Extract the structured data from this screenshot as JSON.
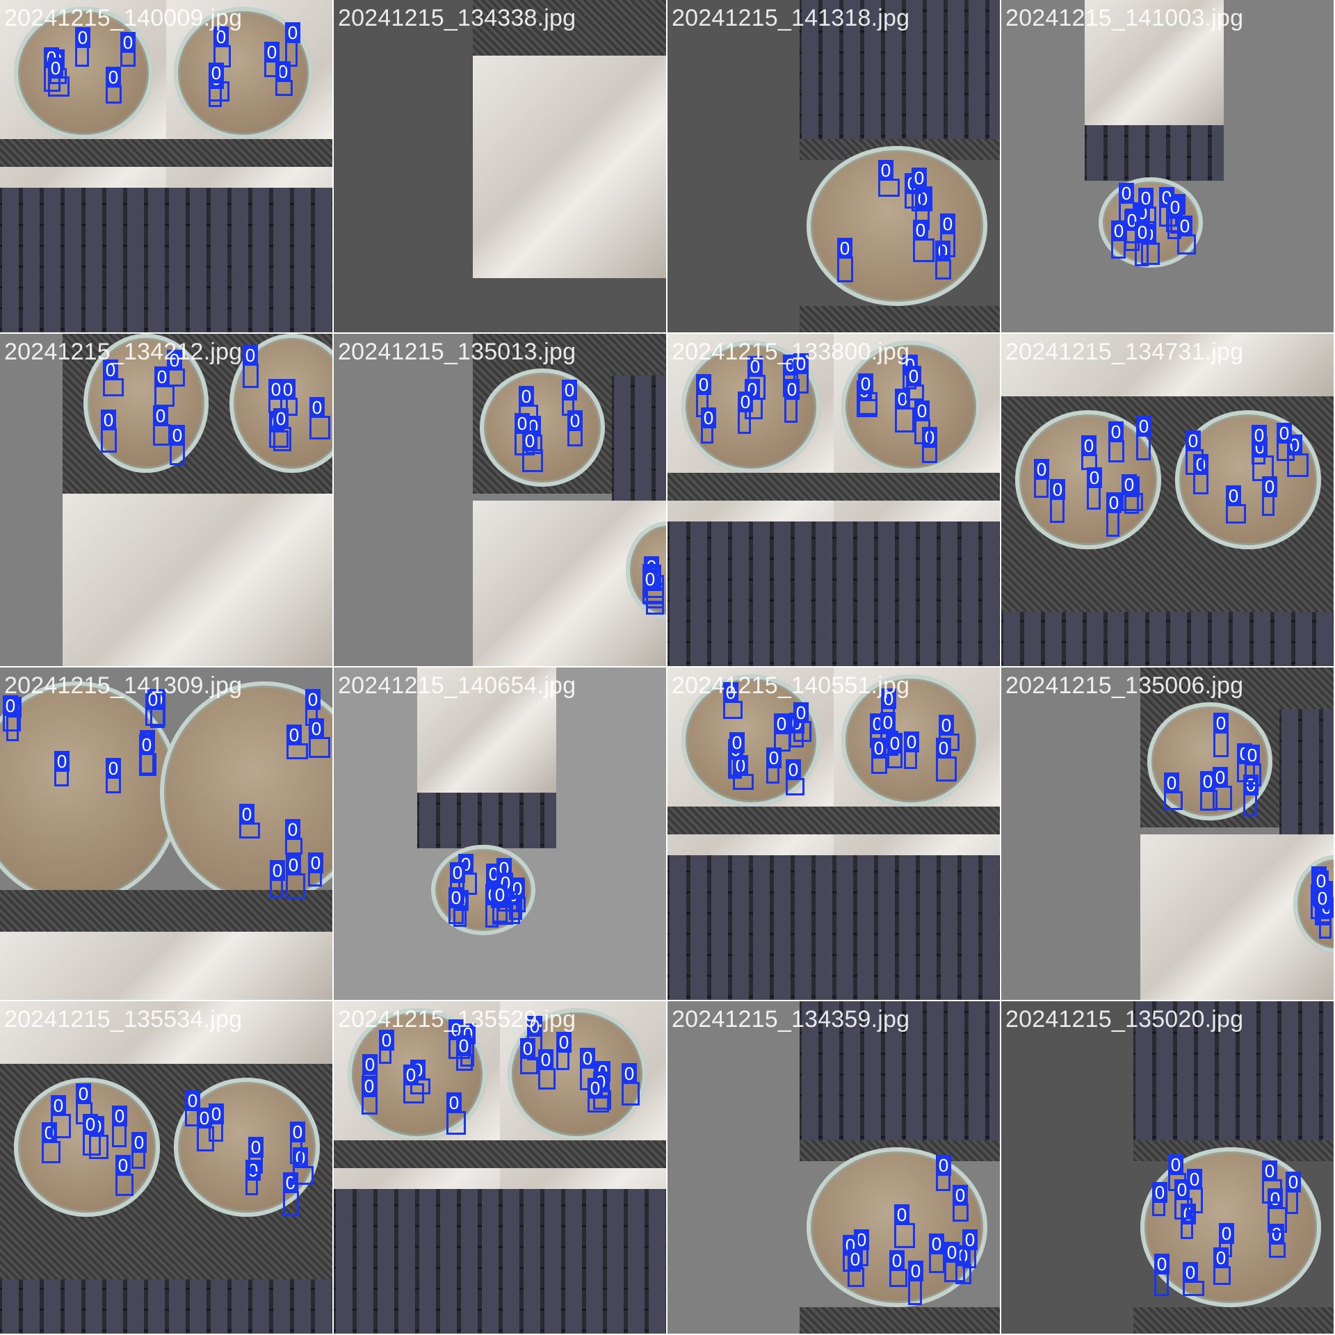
{
  "grid": {
    "label_colors": {
      "box": "#1a35f0",
      "label_text": "#ffffff",
      "caption_text": "#ffffff"
    },
    "tiles": [
      {
        "filename": "20241215_140009.jpg",
        "bg": "#808080",
        "scene": "quad-dish-keys",
        "detections": [
          "0",
          "0",
          "0",
          "0",
          "0",
          "0",
          "0",
          "0",
          "0",
          "0",
          "0",
          "0"
        ]
      },
      {
        "filename": "20241215_134338.jpg",
        "bg": "#555555",
        "scene": "fabric",
        "detections": []
      },
      {
        "filename": "20241215_141318.jpg",
        "bg": "#555555",
        "scene": "keys-dish",
        "detections": [
          "0",
          "0",
          "0",
          "0",
          "0",
          "0",
          "0",
          "0"
        ]
      },
      {
        "filename": "20241215_141003.jpg",
        "bg": "#808080",
        "scene": "quad-small",
        "detections": [
          "0",
          "0",
          "0",
          "0",
          "0",
          "0",
          "0",
          "0",
          "0",
          "0",
          "0",
          "0",
          "0"
        ]
      },
      {
        "filename": "20241215_134212.jpg",
        "bg": "#808080",
        "scene": "dish-fabric",
        "detections": [
          "0",
          "0",
          "0",
          "0",
          "0",
          "0",
          "0",
          "0",
          "0",
          "0",
          "0",
          "0"
        ]
      },
      {
        "filename": "20241215_135013.jpg",
        "bg": "#808080",
        "scene": "dish-fabric-keys",
        "detections": [
          "0",
          "0",
          "0",
          "0",
          "0",
          "0",
          "0",
          "0",
          "0",
          "0",
          "0"
        ]
      },
      {
        "filename": "20241215_133800.jpg",
        "bg": "#808080",
        "scene": "quad-dish-keys",
        "detections": [
          "0",
          "0",
          "0",
          "0",
          "0",
          "0",
          "0",
          "0",
          "0",
          "0",
          "0",
          "0",
          "0",
          "0",
          "0"
        ]
      },
      {
        "filename": "20241215_134731.jpg",
        "bg": "#555555",
        "scene": "dish-pair",
        "detections": [
          "0",
          "0",
          "0",
          "0",
          "0",
          "0",
          "0",
          "0",
          "0",
          "0",
          "0",
          "0",
          "0",
          "0",
          "0",
          "0",
          "0"
        ]
      },
      {
        "filename": "20241215_141309.jpg",
        "bg": "#808080",
        "scene": "dish-pair-close",
        "detections": [
          "0",
          "0",
          "0",
          "0",
          "0",
          "0",
          "0",
          "0",
          "0",
          "0",
          "0",
          "0",
          "0",
          "0",
          "0",
          "0"
        ]
      },
      {
        "filename": "20241215_140654.jpg",
        "bg": "#999999",
        "scene": "quad-small",
        "detections": [
          "0",
          "0",
          "0",
          "0",
          "0",
          "0",
          "0",
          "0",
          "0",
          "0",
          "0",
          "0",
          "0",
          "0"
        ]
      },
      {
        "filename": "20241215_140551.jpg",
        "bg": "#666666",
        "scene": "quad-dish-keys",
        "detections": [
          "0",
          "0",
          "0",
          "0",
          "0",
          "0",
          "0",
          "0",
          "0",
          "0",
          "0",
          "0",
          "0",
          "0",
          "0",
          "0",
          "0"
        ]
      },
      {
        "filename": "20241215_135006.jpg",
        "bg": "#808080",
        "scene": "dish-fabric-keys",
        "detections": [
          "0",
          "0",
          "0",
          "0",
          "0",
          "0",
          "0",
          "0",
          "0",
          "0",
          "0",
          "0",
          "0",
          "0"
        ]
      },
      {
        "filename": "20241215_135534.jpg",
        "bg": "#808080",
        "scene": "dish-pair",
        "detections": [
          "0",
          "0",
          "0",
          "0",
          "0",
          "0",
          "0",
          "0",
          "0",
          "0",
          "0",
          "0",
          "0",
          "0",
          "0",
          "0"
        ]
      },
      {
        "filename": "20241215_135529.jpg",
        "bg": "#808080",
        "scene": "quad-dish-keys",
        "detections": [
          "0",
          "0",
          "0",
          "0",
          "0",
          "0",
          "0",
          "0",
          "0",
          "0",
          "0",
          "0",
          "0",
          "0",
          "0",
          "0",
          "0",
          "0"
        ]
      },
      {
        "filename": "20241215_134359.jpg",
        "bg": "#808080",
        "scene": "keys-dish",
        "detections": [
          "0",
          "0",
          "0",
          "0",
          "0",
          "0",
          "0",
          "0",
          "0",
          "0",
          "0",
          "0"
        ]
      },
      {
        "filename": "20241215_135020.jpg",
        "bg": "#555555",
        "scene": "keys-dish",
        "detections": [
          "0",
          "0",
          "0",
          "0",
          "0",
          "0",
          "0",
          "0",
          "0",
          "0",
          "0",
          "0",
          "0"
        ]
      }
    ]
  }
}
